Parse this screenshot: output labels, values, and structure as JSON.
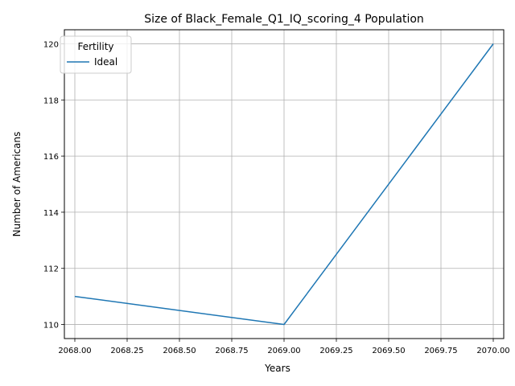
{
  "chart_data": {
    "type": "line",
    "title": "Size of Black_Female_Q1_IQ_scoring_4 Population",
    "xlabel": "Years",
    "ylabel": "Number of Americans",
    "xlim": [
      1.0,
      3.0
    ],
    "ylim": [
      109.5,
      120.5
    ],
    "x_offset_label": "",
    "xticks": [
      {
        "value": 2068.0,
        "label": "2068.00"
      },
      {
        "value": 2068.25,
        "label": "2068.25"
      },
      {
        "value": 2068.5,
        "label": "2068.50"
      },
      {
        "value": 2068.75,
        "label": "2068.75"
      },
      {
        "value": 2069.0,
        "label": "2069.00"
      },
      {
        "value": 2069.25,
        "label": "2069.25"
      },
      {
        "value": 2069.5,
        "label": "2069.50"
      },
      {
        "value": 2069.75,
        "label": "2069.75"
      },
      {
        "value": 2070.0,
        "label": "2070.00"
      }
    ],
    "yticks": [
      110,
      112,
      114,
      116,
      118,
      120
    ],
    "grid": true,
    "legend": {
      "title": "Fertility",
      "placement": "top-left"
    },
    "series": [
      {
        "name": "Ideal",
        "color": "#1f77b4",
        "x": [
          2068,
          2069,
          2070
        ],
        "y": [
          111,
          110,
          120
        ]
      }
    ]
  }
}
